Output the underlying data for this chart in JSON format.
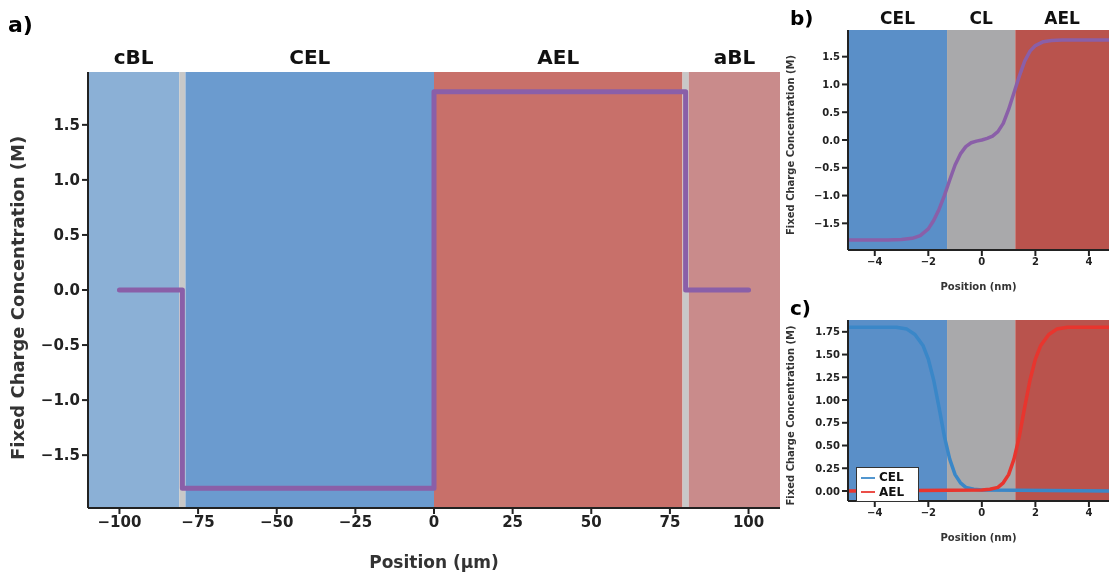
{
  "chart_data": [
    {
      "type": "line",
      "title": "a)",
      "xlabel": "Position (μm)",
      "ylabel": "Fixed Charge Concentration (M)",
      "xlim": [
        -110,
        110
      ],
      "ylim": [
        -1.98,
        1.98
      ],
      "xticks": [
        -100,
        -75,
        -50,
        -25,
        0,
        25,
        50,
        75,
        100
      ],
      "yticks": [
        {
          "value": -1.5,
          "label": "−1.5"
        },
        {
          "value": -1.0,
          "label": "−1.0"
        },
        {
          "value": -0.5,
          "label": "−0.5"
        },
        {
          "value": 0,
          "label": "0.0"
        },
        {
          "value": 0.5,
          "label": "0.5"
        },
        {
          "value": 1.0,
          "label": "1.0"
        },
        {
          "value": 1.5,
          "label": "1.5"
        }
      ],
      "legend": false,
      "bands": [
        {
          "axis": "x",
          "from": -110,
          "to": -81,
          "label": "cBL",
          "color": "#8bb0d6"
        },
        {
          "axis": "x",
          "from": -81,
          "to": -79,
          "color": "#c8c8c8"
        },
        {
          "axis": "x",
          "from": -79,
          "to": 0,
          "label": "CEL",
          "color": "#6b9bcf"
        },
        {
          "axis": "x",
          "from": 0,
          "to": 79,
          "label": "AEL",
          "color": "#c8706a"
        },
        {
          "axis": "x",
          "from": 79,
          "to": 81,
          "color": "#c8c8c8"
        },
        {
          "axis": "x",
          "from": 81,
          "to": 110,
          "label": "aBL",
          "color": "#c98b8b"
        }
      ],
      "series": [
        {
          "color": "#8a5fa8",
          "x": [
            -100,
            -80,
            -80,
            0,
            0,
            80,
            80,
            100
          ],
          "values": [
            0,
            0,
            -1.8,
            -1.8,
            1.8,
            1.8,
            0,
            0
          ]
        }
      ]
    },
    {
      "type": "line",
      "title": "b)",
      "xlabel": "Position (nm)",
      "ylabel": "Fixed Charge Concentration (M)",
      "xlim": [
        -5,
        4.75
      ],
      "ylim": [
        -1.98,
        1.98
      ],
      "xticks": [
        -4,
        -2,
        0,
        2,
        4
      ],
      "yticks": [
        {
          "value": -1.5,
          "label": "−1.5"
        },
        {
          "value": -1.0,
          "label": "−1.0"
        },
        {
          "value": -0.5,
          "label": "−0.5"
        },
        {
          "value": 0,
          "label": "0.0"
        },
        {
          "value": 0.5,
          "label": "0.5"
        },
        {
          "value": 1.0,
          "label": "1.0"
        },
        {
          "value": 1.5,
          "label": "1.5"
        }
      ],
      "legend": false,
      "bands": [
        {
          "axis": "x",
          "from": -5,
          "to": -1.3,
          "label": "CEL",
          "color": "#5a8fc8"
        },
        {
          "axis": "x",
          "from": -1.3,
          "to": 1.25,
          "label": "CL",
          "color": "#a9a9ab"
        },
        {
          "axis": "x",
          "from": 1.25,
          "to": 4.75,
          "label": "AEL",
          "color": "#b9534d"
        }
      ],
      "series": [
        {
          "color": "#8a5fa8",
          "x": [
            -5,
            -3.5,
            -3,
            -2.6,
            -2.3,
            -2,
            -1.8,
            -1.6,
            -1.4,
            -1.2,
            -1,
            -0.8,
            -0.6,
            -0.4,
            -0.2,
            0,
            0.2,
            0.4,
            0.6,
            0.8,
            1,
            1.2,
            1.4,
            1.6,
            1.8,
            2,
            2.3,
            2.6,
            3,
            3.5,
            4.75
          ],
          "values": [
            -1.8,
            -1.8,
            -1.79,
            -1.77,
            -1.72,
            -1.6,
            -1.45,
            -1.25,
            -1.0,
            -0.72,
            -0.45,
            -0.25,
            -0.12,
            -0.05,
            -0.02,
            0,
            0.03,
            0.07,
            0.15,
            0.3,
            0.55,
            0.85,
            1.15,
            1.42,
            1.6,
            1.7,
            1.77,
            1.79,
            1.8,
            1.8,
            1.8
          ]
        }
      ]
    },
    {
      "type": "line",
      "title": "c)",
      "xlabel": "Position (nm)",
      "ylabel": "Fixed Charge Concentration (M)",
      "xlim": [
        -5,
        4.75
      ],
      "ylim": [
        -0.11,
        1.88
      ],
      "xticks": [
        -4,
        -2,
        0,
        2,
        4
      ],
      "yticks": [
        {
          "value": 0,
          "label": "0.00"
        },
        {
          "value": 0.25,
          "label": "0.25"
        },
        {
          "value": 0.5,
          "label": "0.50"
        },
        {
          "value": 0.75,
          "label": "0.75"
        },
        {
          "value": 1.0,
          "label": "1.00"
        },
        {
          "value": 1.25,
          "label": "1.25"
        },
        {
          "value": 1.5,
          "label": "1.50"
        },
        {
          "value": 1.75,
          "label": "1.75"
        }
      ],
      "legend": "bottom left",
      "bands": [
        {
          "axis": "x",
          "from": -5,
          "to": -1.3,
          "color": "#5a8fc8"
        },
        {
          "axis": "x",
          "from": -1.3,
          "to": 1.25,
          "color": "#a9a9ab"
        },
        {
          "axis": "x",
          "from": 1.25,
          "to": 4.75,
          "color": "#b9534d"
        }
      ],
      "series": [
        {
          "name": "CEL",
          "color": "#3a87c8",
          "x": [
            -5,
            -3.2,
            -2.8,
            -2.5,
            -2.2,
            -2,
            -1.8,
            -1.6,
            -1.4,
            -1.2,
            -1,
            -0.8,
            -0.6,
            -0.3,
            0,
            4.75
          ],
          "values": [
            1.8,
            1.8,
            1.78,
            1.72,
            1.6,
            1.45,
            1.22,
            0.92,
            0.6,
            0.35,
            0.18,
            0.09,
            0.04,
            0.02,
            0.01,
            0
          ]
        },
        {
          "name": "AEL",
          "color": "#e8352e",
          "x": [
            -5,
            0,
            0.3,
            0.6,
            0.8,
            1,
            1.2,
            1.4,
            1.6,
            1.8,
            2,
            2.2,
            2.5,
            2.8,
            3.2,
            4.75
          ],
          "values": [
            0,
            0.01,
            0.02,
            0.04,
            0.09,
            0.18,
            0.35,
            0.6,
            0.92,
            1.22,
            1.45,
            1.6,
            1.72,
            1.78,
            1.8,
            1.8
          ]
        }
      ]
    }
  ]
}
